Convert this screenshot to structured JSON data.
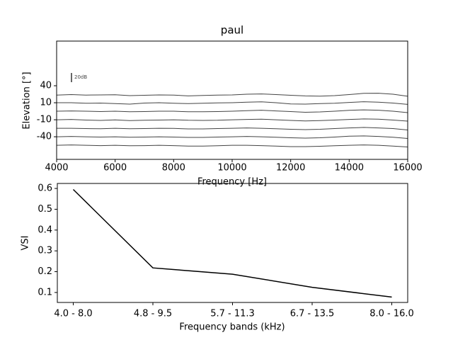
{
  "chart_data": [
    {
      "type": "line",
      "title": "paul",
      "xlabel": "Frequency [Hz]",
      "ylabel": "Elevation [°]",
      "annotation": "20dB",
      "x": [
        4000,
        4500,
        5000,
        5500,
        6000,
        6500,
        7000,
        7500,
        8000,
        8500,
        9000,
        9500,
        10000,
        10500,
        11000,
        11500,
        12000,
        12500,
        13000,
        13500,
        14000,
        14500,
        15000,
        15500,
        16000
      ],
      "series": [
        {
          "color": "#444444",
          "values": [
            2.45,
            2.48,
            2.45,
            2.46,
            2.47,
            2.42,
            2.44,
            2.46,
            2.45,
            2.4,
            2.43,
            2.45,
            2.46,
            2.5,
            2.52,
            2.48,
            2.44,
            2.4,
            2.39,
            2.42,
            2.48,
            2.55,
            2.56,
            2.5,
            2.38
          ]
        },
        {
          "color": "#444444",
          "values": [
            2.0,
            2.0,
            1.97,
            1.98,
            1.95,
            1.92,
            1.98,
            2.0,
            1.97,
            1.95,
            1.97,
            1.99,
            2.0,
            2.03,
            2.05,
            2.0,
            1.93,
            1.92,
            1.95,
            1.97,
            2.02,
            2.06,
            2.03,
            1.98,
            1.9
          ]
        },
        {
          "color": "#444444",
          "values": [
            1.5,
            1.52,
            1.5,
            1.48,
            1.5,
            1.47,
            1.48,
            1.5,
            1.5,
            1.47,
            1.47,
            1.48,
            1.5,
            1.53,
            1.56,
            1.52,
            1.48,
            1.44,
            1.46,
            1.5,
            1.55,
            1.58,
            1.56,
            1.5,
            1.42
          ]
        },
        {
          "color": "#444444",
          "values": [
            1.0,
            1.02,
            0.98,
            0.96,
            0.99,
            0.95,
            0.97,
            0.98,
            1.0,
            0.97,
            0.96,
            0.97,
            1.0,
            1.02,
            1.03,
            1.0,
            0.96,
            0.93,
            0.95,
            0.98,
            1.02,
            1.05,
            1.03,
            0.98,
            0.92
          ]
        },
        {
          "color": "#444444",
          "values": [
            0.5,
            0.5,
            0.48,
            0.47,
            0.5,
            0.47,
            0.48,
            0.5,
            0.49,
            0.46,
            0.46,
            0.48,
            0.5,
            0.52,
            0.5,
            0.47,
            0.44,
            0.42,
            0.44,
            0.48,
            0.52,
            0.55,
            0.52,
            0.48,
            0.4
          ]
        },
        {
          "color": "#444444",
          "values": [
            0.0,
            0.02,
            0.0,
            -0.02,
            0.0,
            -0.03,
            -0.02,
            0.0,
            -0.02,
            -0.04,
            -0.04,
            -0.02,
            0.0,
            0.02,
            0.0,
            -0.03,
            -0.06,
            -0.08,
            -0.06,
            -0.02,
            0.03,
            0.05,
            0.02,
            -0.03,
            -0.1
          ]
        },
        {
          "color": "#444444",
          "values": [
            -0.5,
            -0.48,
            -0.5,
            -0.52,
            -0.5,
            -0.53,
            -0.52,
            -0.5,
            -0.52,
            -0.55,
            -0.55,
            -0.53,
            -0.5,
            -0.5,
            -0.52,
            -0.55,
            -0.58,
            -0.58,
            -0.56,
            -0.53,
            -0.5,
            -0.48,
            -0.5,
            -0.55,
            -0.6
          ]
        }
      ],
      "xlim": [
        4000,
        16000
      ],
      "ylim": [
        -1.33,
        5.625
      ],
      "xticks": [
        4000,
        6000,
        8000,
        10000,
        12000,
        14000,
        16000
      ],
      "yticks": [
        {
          "value": 3,
          "label": "40"
        },
        {
          "value": 2,
          "label": "10"
        },
        {
          "value": 1,
          "label": "-10"
        },
        {
          "value": 0,
          "label": "-40"
        }
      ]
    },
    {
      "type": "line",
      "xlabel": "Frequency bands (kHz)",
      "ylabel": "VSI",
      "categories": [
        "4.0 - 8.0",
        "4.8 - 9.5",
        "5.7 - 11.3",
        "6.7 - 13.5",
        "8.0 - 16.0"
      ],
      "values": [
        0.595,
        0.218,
        0.188,
        0.125,
        0.078
      ],
      "color": "#000000",
      "ylim": [
        0.052,
        0.624
      ],
      "yticks": [
        0.1,
        0.2,
        0.3,
        0.4,
        0.5,
        0.6
      ]
    }
  ]
}
